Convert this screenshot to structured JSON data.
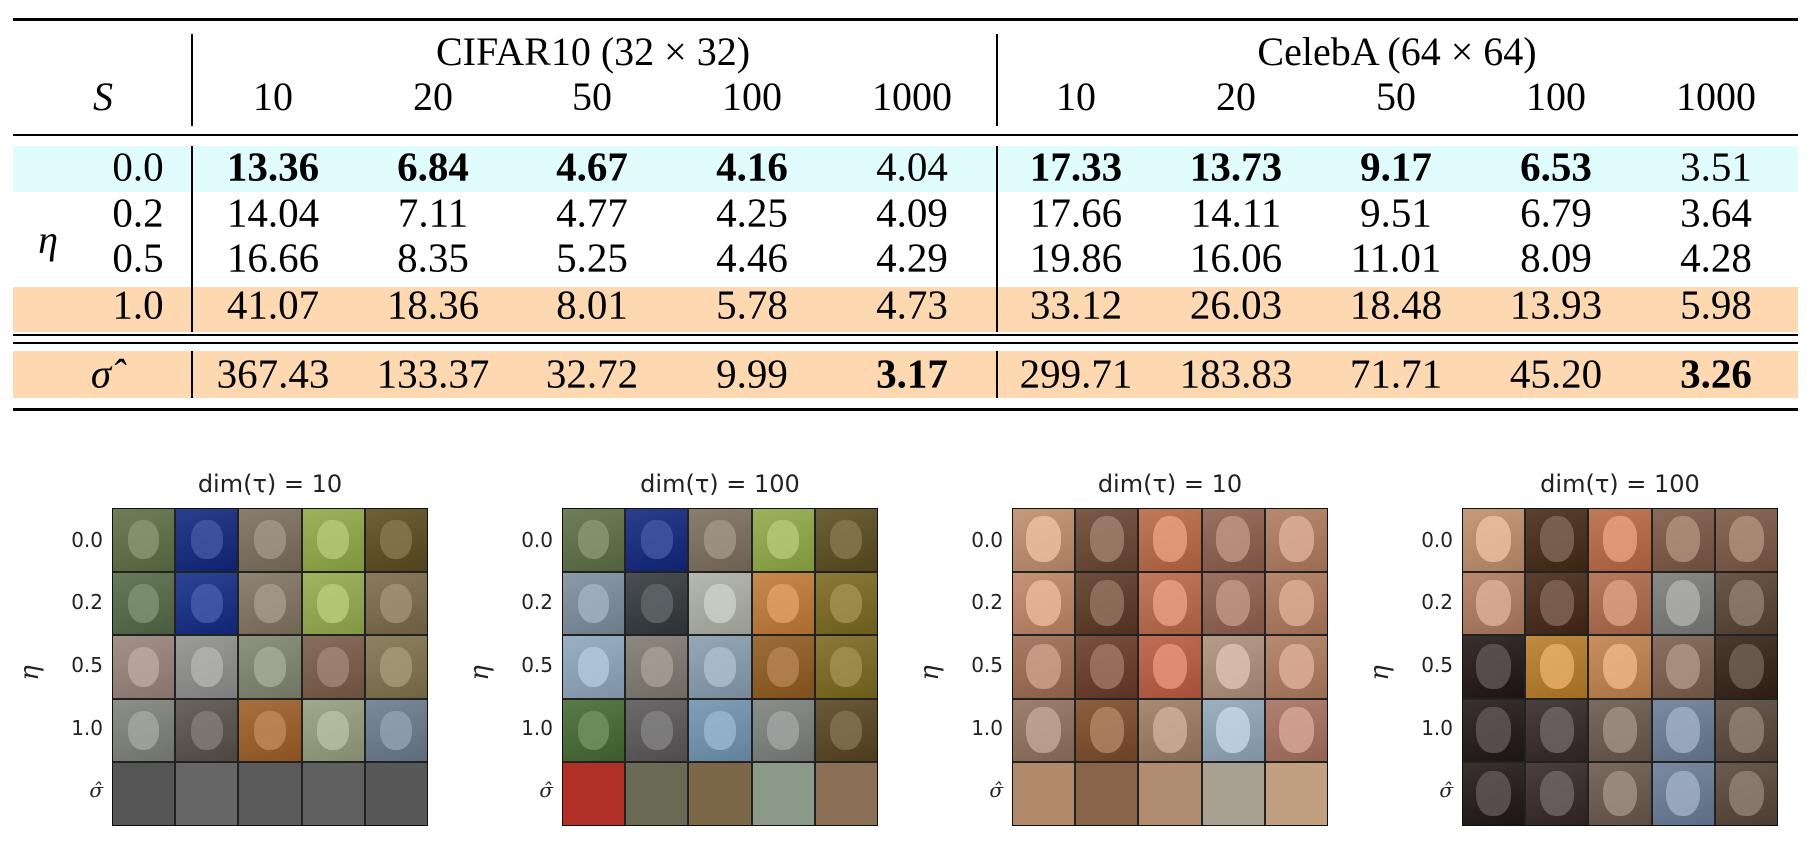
{
  "table": {
    "row_header_label": "S",
    "group_label": "η",
    "datasets": [
      {
        "name": "CIFAR10 (32 × 32)",
        "s_values": [
          "10",
          "20",
          "50",
          "100",
          "1000"
        ]
      },
      {
        "name": "CelebA (64 × 64)",
        "s_values": [
          "10",
          "20",
          "50",
          "100",
          "1000"
        ]
      }
    ],
    "rows": [
      {
        "label": "0.0",
        "highlight": "#e0fcfc",
        "cells": [
          {
            "v": "13.36",
            "bold": true
          },
          {
            "v": "6.84",
            "bold": true
          },
          {
            "v": "4.67",
            "bold": true
          },
          {
            "v": "4.16",
            "bold": true
          },
          {
            "v": "4.04",
            "bold": false
          },
          {
            "v": "17.33",
            "bold": true
          },
          {
            "v": "13.73",
            "bold": true
          },
          {
            "v": "9.17",
            "bold": true
          },
          {
            "v": "6.53",
            "bold": true
          },
          {
            "v": "3.51",
            "bold": false
          }
        ]
      },
      {
        "label": "0.2",
        "highlight": "",
        "cells": [
          {
            "v": "14.04",
            "bold": false
          },
          {
            "v": "7.11",
            "bold": false
          },
          {
            "v": "4.77",
            "bold": false
          },
          {
            "v": "4.25",
            "bold": false
          },
          {
            "v": "4.09",
            "bold": false
          },
          {
            "v": "17.66",
            "bold": false
          },
          {
            "v": "14.11",
            "bold": false
          },
          {
            "v": "9.51",
            "bold": false
          },
          {
            "v": "6.79",
            "bold": false
          },
          {
            "v": "3.64",
            "bold": false
          }
        ]
      },
      {
        "label": "0.5",
        "highlight": "",
        "cells": [
          {
            "v": "16.66",
            "bold": false
          },
          {
            "v": "8.35",
            "bold": false
          },
          {
            "v": "5.25",
            "bold": false
          },
          {
            "v": "4.46",
            "bold": false
          },
          {
            "v": "4.29",
            "bold": false
          },
          {
            "v": "19.86",
            "bold": false
          },
          {
            "v": "16.06",
            "bold": false
          },
          {
            "v": "11.01",
            "bold": false
          },
          {
            "v": "8.09",
            "bold": false
          },
          {
            "v": "4.28",
            "bold": false
          }
        ]
      },
      {
        "label": "1.0",
        "highlight": "#fdd8b0",
        "cells": [
          {
            "v": "41.07",
            "bold": false
          },
          {
            "v": "18.36",
            "bold": false
          },
          {
            "v": "8.01",
            "bold": false
          },
          {
            "v": "5.78",
            "bold": false
          },
          {
            "v": "4.73",
            "bold": false
          },
          {
            "v": "33.12",
            "bold": false
          },
          {
            "v": "26.03",
            "bold": false
          },
          {
            "v": "18.48",
            "bold": false
          },
          {
            "v": "13.93",
            "bold": false
          },
          {
            "v": "5.98",
            "bold": false
          }
        ]
      }
    ],
    "sigma_row": {
      "label": "σ̂",
      "highlight": "#fdd8b0",
      "cells": [
        {
          "v": "367.43",
          "bold": false
        },
        {
          "v": "133.37",
          "bold": false
        },
        {
          "v": "32.72",
          "bold": false
        },
        {
          "v": "9.99",
          "bold": false
        },
        {
          "v": "3.17",
          "bold": true
        },
        {
          "v": "299.71",
          "bold": false
        },
        {
          "v": "183.83",
          "bold": false
        },
        {
          "v": "71.71",
          "bold": false
        },
        {
          "v": "45.20",
          "bold": false
        },
        {
          "v": "3.26",
          "bold": true
        }
      ]
    }
  },
  "sample_grids": {
    "y_axis_label": "η",
    "row_labels": [
      "0.0",
      "0.2",
      "0.5",
      "1.0",
      "σ̂"
    ],
    "panels": [
      {
        "title": "dim(τ) = 10",
        "kind": "cifar"
      },
      {
        "title": "dim(τ) = 100",
        "kind": "cifar"
      },
      {
        "title": "dim(τ) = 10",
        "kind": "celeba"
      },
      {
        "title": "dim(τ) = 100",
        "kind": "celeba"
      }
    ]
  }
}
